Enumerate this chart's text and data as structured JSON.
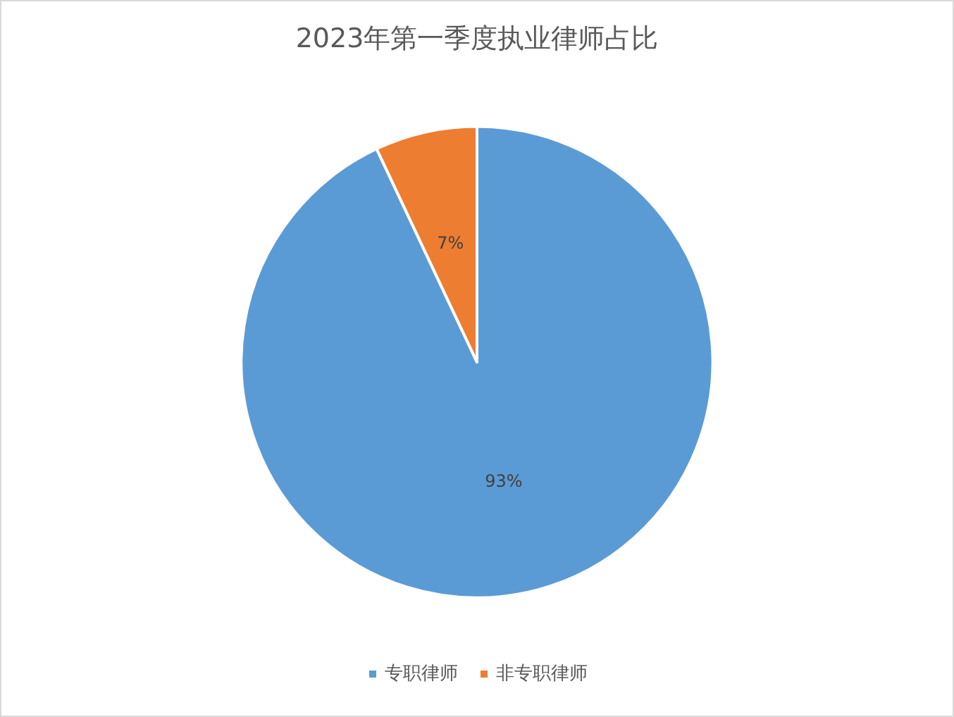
{
  "chart_data": {
    "type": "pie",
    "title": "2023年第一季度执业律师占比",
    "categories": [
      "专职律师",
      "非专职律师"
    ],
    "values": [
      93,
      7
    ],
    "colors": [
      "#5b9bd5",
      "#ed7d31"
    ],
    "value_labels": [
      "93%",
      "7%"
    ],
    "legend": "bottom"
  }
}
